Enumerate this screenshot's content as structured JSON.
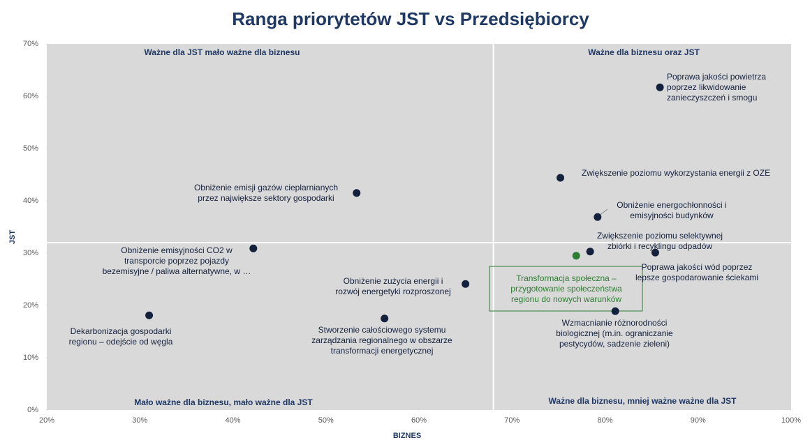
{
  "chart_data": {
    "type": "scatter",
    "title": "Ranga priorytetów JST vs Przedsiębiorcy",
    "xlabel": "BIZNES",
    "ylabel": "JST",
    "xlim": [
      20,
      100
    ],
    "ylim": [
      0,
      70
    ],
    "xticks": [
      {
        "value": 20,
        "label": "20%"
      },
      {
        "value": 30,
        "label": "30%"
      },
      {
        "value": 40,
        "label": "40%"
      },
      {
        "value": 50,
        "label": "50%"
      },
      {
        "value": 60,
        "label": "60%"
      },
      {
        "value": 70,
        "label": "70%"
      },
      {
        "value": 80,
        "label": "80%"
      },
      {
        "value": 90,
        "label": "90%"
      },
      {
        "value": 100,
        "label": "100%"
      }
    ],
    "yticks": [
      {
        "value": 0,
        "label": "0%"
      },
      {
        "value": 10,
        "label": "10%"
      },
      {
        "value": 20,
        "label": "20%"
      },
      {
        "value": 30,
        "label": "30%"
      },
      {
        "value": 40,
        "label": "40%"
      },
      {
        "value": 50,
        "label": "50%"
      },
      {
        "value": 60,
        "label": "60%"
      },
      {
        "value": 70,
        "label": "70%"
      }
    ],
    "background": "#d9d9d9",
    "quadrant_lines": {
      "x": 68,
      "y": 32
    },
    "quadrants": [
      "Ważne dla JST mało ważne dla biznesu",
      "Ważne dla biznesu oraz JST",
      "Mało ważne dla biznesu, mało ważne dla JST",
      "Ważne dla biznesu, mniej ważne ważne dla JST"
    ],
    "points": [
      {
        "label": [
          "Poprawa jakości powietrza",
          "poprzez likwidowanie",
          "zanieczyszczeń i smogu"
        ],
        "x": 85.9,
        "y": 61.7,
        "color": "#14213d"
      },
      {
        "label": [
          "Zwiększenie poziomu wykorzystania energii z OZE"
        ],
        "x": 75.2,
        "y": 44.4,
        "color": "#14213d"
      },
      {
        "label": [
          "Obniżenie energochłonności i",
          "emisyjności budynków"
        ],
        "x": 79.2,
        "y": 36.9,
        "color": "#14213d"
      },
      {
        "label": [
          "Zwiększenie poziomu selektywnej",
          "zbiórki i recyklingu odpadów"
        ],
        "x": 78.4,
        "y": 30.3,
        "color": "#14213d"
      },
      {
        "label": [
          "Poprawa jakości wód poprzez",
          "lepsze gospodarowanie ściekami"
        ],
        "x": 85.4,
        "y": 30.1,
        "color": "#14213d"
      },
      {
        "label": [
          "Transformacja społeczna  –",
          "przygotowanie społeczeństwa",
          "regionu do nowych warunków"
        ],
        "x": 76.9,
        "y": 29.5,
        "color": "#2e7d32"
      },
      {
        "label": [
          "Wzmacnianie różnorodności",
          "biologicznej (m.in. ograniczanie",
          "pestycydów, sadzenie zieleni)"
        ],
        "x": 81.1,
        "y": 18.9,
        "color": "#14213d"
      },
      {
        "label": [
          "Obniżenie zużycia energii i",
          "rozwój  energetyki rozproszonej"
        ],
        "x": 65.0,
        "y": 24.1,
        "color": "#14213d"
      },
      {
        "label": [
          "Stworzenie całościowego systemu",
          "zarządzania regionalnego w obszarze",
          "transformacji energetycznej"
        ],
        "x": 56.3,
        "y": 17.5,
        "color": "#14213d"
      },
      {
        "label": [
          "Obniżenie emisji gazów cieplarnianych",
          "przez największe sektory gospodarki"
        ],
        "x": 53.3,
        "y": 41.5,
        "color": "#14213d"
      },
      {
        "label": [
          "Obniżenie emisyjności CO2 w",
          "transporcie poprzez pojazdy",
          "bezemisyjne / paliwa alternatywne, w …"
        ],
        "x": 42.2,
        "y": 30.9,
        "color": "#14213d"
      },
      {
        "label": [
          "Dekarbonizacja gospodarki",
          "regionu – odejście od węgla"
        ],
        "x": 31.0,
        "y": 18.1,
        "color": "#14213d"
      }
    ]
  }
}
